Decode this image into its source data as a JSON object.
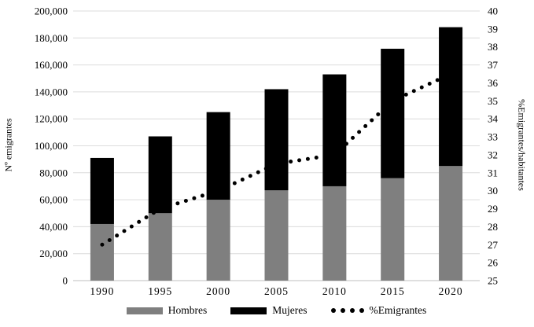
{
  "chart_data": {
    "type": "bar",
    "subtype": "stacked-bars-with-dotted-line-secondary-axis",
    "title": "",
    "categories": [
      "1990",
      "1995",
      "2000",
      "2005",
      "2010",
      "2015",
      "2020"
    ],
    "series": [
      {
        "name": "Hombres",
        "type": "bar",
        "stack": "emigrantes",
        "axis": "left",
        "color": "#7f7f7f",
        "values": [
          42000,
          50000,
          60000,
          67000,
          70000,
          76000,
          85000
        ]
      },
      {
        "name": "Mujeres",
        "type": "bar",
        "stack": "emigrantes",
        "axis": "left",
        "color": "#000000",
        "values": [
          49000,
          57000,
          65000,
          75000,
          83000,
          96000,
          103000
        ]
      },
      {
        "name": "%Emigrantes",
        "type": "line",
        "axis": "right",
        "color": "#000000",
        "style": "round-dot",
        "values": [
          27.0,
          29.0,
          30.0,
          31.5,
          32.0,
          35.0,
          36.5
        ]
      }
    ],
    "stacked_totals": [
      91000,
      107000,
      125000,
      142000,
      153000,
      172000,
      188000
    ],
    "left_axis": {
      "label": "Nº emigrantes",
      "min": 0,
      "max": 200000,
      "step": 20000,
      "ticks": [
        "0",
        "20,000",
        "40,000",
        "60,000",
        "80,000",
        "100,000",
        "120,000",
        "140,000",
        "160,000",
        "180,000",
        "200,000"
      ]
    },
    "right_axis": {
      "label": "%Emigrantes/habitantes",
      "min": 25,
      "max": 40,
      "step": 1,
      "ticks": [
        "25",
        "26",
        "27",
        "28",
        "29",
        "30",
        "31",
        "32",
        "33",
        "34",
        "35",
        "36",
        "37",
        "38",
        "39",
        "40"
      ]
    },
    "legend": {
      "position": "bottom",
      "items": [
        "Hombres",
        "Mujeres",
        "%Emigrantes"
      ]
    },
    "grid": true,
    "colors": {
      "gridline": "#dcdcdc",
      "axis_line": "#bfbfbf",
      "background": "#ffffff"
    }
  }
}
